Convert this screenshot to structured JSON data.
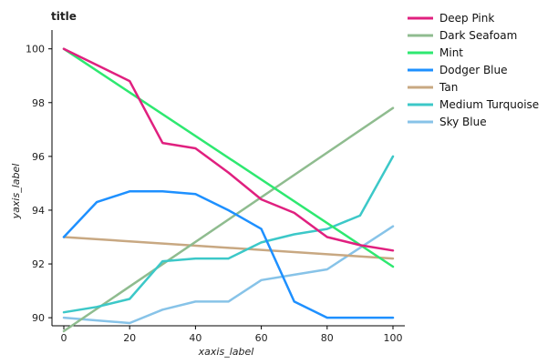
{
  "chart_data": {
    "type": "line",
    "title": "title",
    "xlabel": "xaxis_label",
    "ylabel": "yaxis_label",
    "xlim": [
      0,
      100
    ],
    "ylim": [
      89.7,
      100.7
    ],
    "x_ticks": [
      "0",
      "20",
      "40",
      "60",
      "80",
      "100"
    ],
    "y_ticks": [
      "90",
      "92",
      "94",
      "96",
      "98",
      "100"
    ],
    "grid": false,
    "legend_position": "right",
    "series": [
      {
        "name": "Deep Pink",
        "color": "#e0207f",
        "x": [
          0,
          10,
          20,
          30,
          40,
          50,
          60,
          70,
          80,
          90,
          100
        ],
        "y": [
          100.0,
          99.4,
          98.8,
          96.5,
          96.3,
          95.4,
          94.4,
          93.9,
          93.0,
          92.7,
          92.5
        ]
      },
      {
        "name": "Dark Seafoam",
        "color": "#8fbc8f",
        "x": [
          0,
          100
        ],
        "y": [
          89.5,
          97.8
        ]
      },
      {
        "name": "Mint",
        "color": "#2ee870",
        "x": [
          0,
          100
        ],
        "y": [
          100.0,
          91.9
        ]
      },
      {
        "name": "Dodger Blue",
        "color": "#1e90ff",
        "x": [
          0,
          10,
          20,
          30,
          40,
          50,
          60,
          70,
          80,
          90,
          100
        ],
        "y": [
          93.0,
          94.3,
          94.7,
          94.7,
          94.6,
          94.0,
          93.3,
          90.6,
          90.0,
          90.0,
          90.0
        ]
      },
      {
        "name": "Tan",
        "color": "#c8a882",
        "x": [
          0,
          100
        ],
        "y": [
          93.0,
          92.2
        ]
      },
      {
        "name": "Medium Turquoise",
        "color": "#3cc8c8",
        "x": [
          0,
          10,
          20,
          30,
          40,
          50,
          60,
          70,
          80,
          90,
          100
        ],
        "y": [
          90.2,
          90.4,
          90.7,
          92.1,
          92.2,
          92.2,
          92.8,
          93.1,
          93.3,
          93.8,
          96.0
        ]
      },
      {
        "name": "Sky Blue",
        "color": "#87c3e8",
        "x": [
          0,
          10,
          20,
          30,
          40,
          50,
          60,
          70,
          80,
          90,
          100
        ],
        "y": [
          90.0,
          89.9,
          89.8,
          90.3,
          90.6,
          90.6,
          91.4,
          91.6,
          91.8,
          92.6,
          93.4
        ]
      }
    ]
  }
}
